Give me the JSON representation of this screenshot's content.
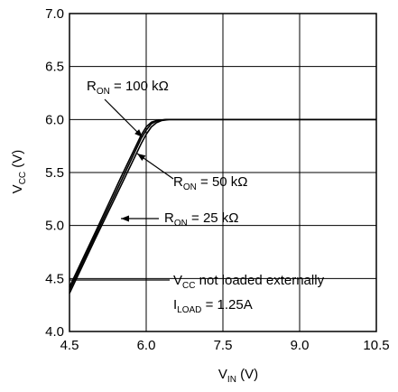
{
  "chart_data": {
    "type": "line",
    "xlabel": "V",
    "xlabel_sub": "IN",
    "xlabel_unit": " (V)",
    "ylabel": "V",
    "ylabel_sub": "CC",
    "ylabel_unit": " (V)",
    "xlim": [
      4.5,
      10.5
    ],
    "ylim": [
      4.0,
      7.0
    ],
    "xticks": [
      "4.5",
      "6.0",
      "7.5",
      "9.0",
      "10.5"
    ],
    "yticks": [
      "4.0",
      "4.5",
      "5.0",
      "5.5",
      "6.0",
      "6.5",
      "7.0"
    ],
    "grid": true,
    "series": [
      {
        "name": "RON = 100 kΩ",
        "x": [
          4.5,
          5.0,
          5.5,
          5.9,
          6.0,
          6.1,
          6.2,
          6.4,
          7.0,
          8.0,
          9.0,
          10.5
        ],
        "y": [
          4.42,
          4.93,
          5.45,
          5.85,
          5.93,
          5.975,
          5.99,
          6.0,
          6.0,
          6.0,
          6.0,
          6.0
        ]
      },
      {
        "name": "RON = 50 kΩ",
        "x": [
          4.5,
          5.0,
          5.5,
          5.9,
          6.0,
          6.1,
          6.2,
          6.3,
          6.4,
          7.0,
          8.0,
          9.0,
          10.5
        ],
        "y": [
          4.39,
          4.9,
          5.41,
          5.82,
          5.9,
          5.96,
          5.985,
          5.995,
          6.0,
          6.0,
          6.0,
          6.0,
          6.0
        ]
      },
      {
        "name": "RON = 25 kΩ",
        "x": [
          4.5,
          5.0,
          5.5,
          5.9,
          6.0,
          6.1,
          6.2,
          6.3,
          6.45,
          7.0,
          8.0,
          9.0,
          10.5
        ],
        "y": [
          4.36,
          4.87,
          5.37,
          5.77,
          5.86,
          5.93,
          5.97,
          5.99,
          6.0,
          6.0,
          6.0,
          6.0,
          6.0
        ]
      }
    ],
    "annotations": {
      "r100": {
        "pre": "R",
        "sub": "ON",
        "post": " = 100 kΩ"
      },
      "r50": {
        "pre": "R",
        "sub": "ON",
        "post": " = 50 kΩ"
      },
      "r25": {
        "pre": "R",
        "sub": "ON",
        "post": " = 25 kΩ"
      },
      "vcc_note": {
        "pre": "V",
        "sub": "CC",
        "post": " not loaded externally"
      },
      "iload": {
        "pre": "I",
        "sub": "LOAD",
        "post": " = 1.25A"
      }
    }
  }
}
